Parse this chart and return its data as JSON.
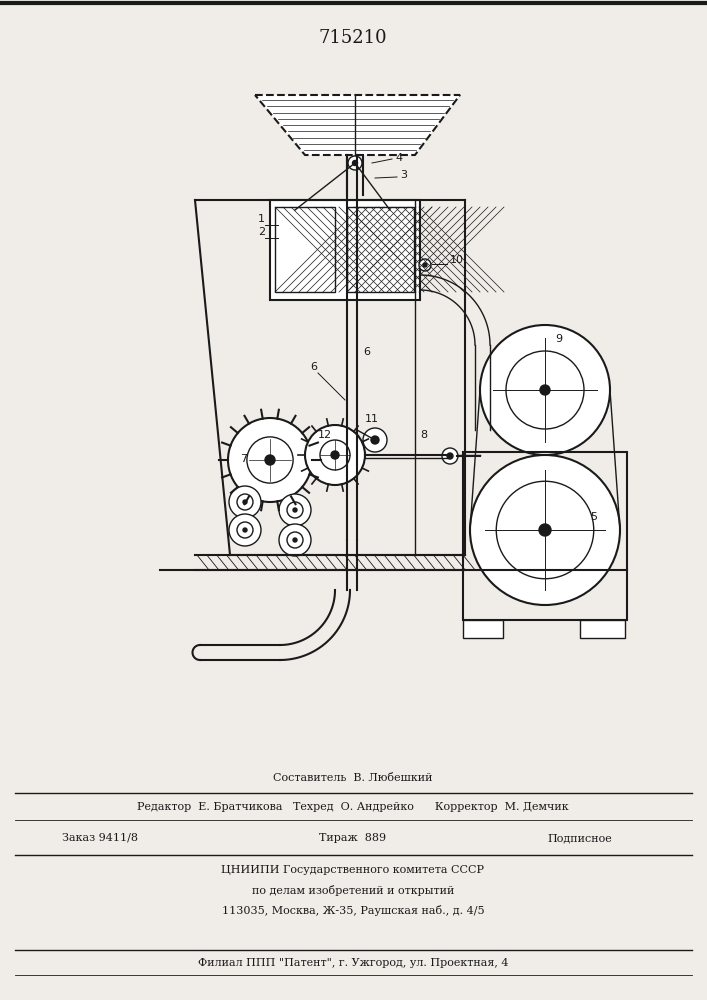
{
  "title": "715210",
  "bg": "#f0ede8",
  "dark": "#1a1a1a",
  "footer_lines": [
    "Составитель  В. Любешкий",
    "Редактор  Е. Братчикова   Техред  О. Андрейко      Корректор  М. Демчик",
    "Заказ 9411/8",
    "Тираж  889",
    "Подписное",
    "ЦНИИПИ Государственного комитета СССР",
    "по делам изобретений и открытий",
    "113035, Москва, Ж-35, Раушская наб., д. 4/5",
    "Филиал ППП \"Патент\", г. Ужгород, ул. Проектная, 4"
  ]
}
